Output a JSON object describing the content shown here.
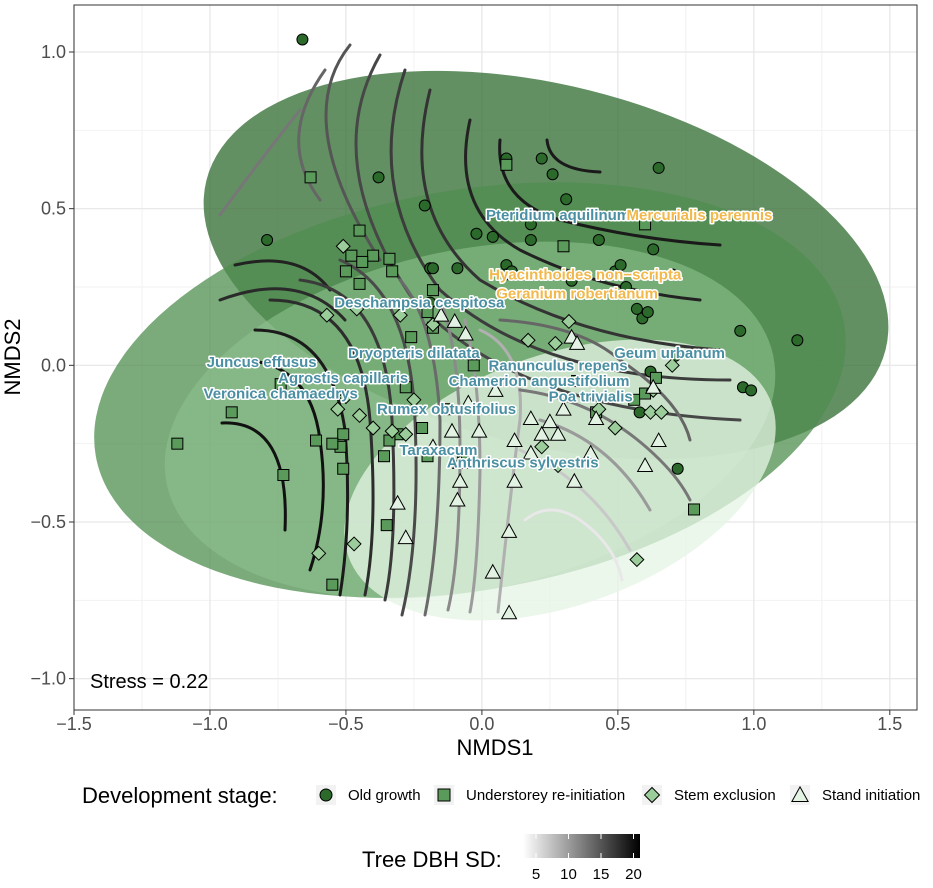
{
  "chart_data": {
    "type": "scatter",
    "xlabel": "NMDS1",
    "ylabel": "NMDS2",
    "xlim": [
      -1.5,
      1.6
    ],
    "ylim": [
      -1.1,
      1.15
    ],
    "x_ticks": [
      -1.5,
      -1.0,
      -0.5,
      0.0,
      0.5,
      1.0,
      1.5
    ],
    "x_tick_labels": [
      "−1.5",
      "−1.0",
      "−0.5",
      "0.0",
      "0.5",
      "1.0",
      "1.5"
    ],
    "y_ticks": [
      -1.0,
      -0.5,
      0.0,
      0.5,
      1.0
    ],
    "y_tick_labels": [
      "−1.0",
      "−0.5",
      "0.0",
      "0.5",
      "1.0"
    ],
    "grid": true,
    "stress_label": "Stress = 0.22",
    "legend_title": "Development stage:",
    "series": [
      {
        "name": "Old growth",
        "marker": "circle",
        "fill": "#2b6a2b",
        "points": [
          [
            -0.66,
            1.04
          ],
          [
            -0.79,
            0.4
          ],
          [
            -0.38,
            0.6
          ],
          [
            -0.21,
            0.51
          ],
          [
            -0.19,
            0.31
          ],
          [
            -0.19,
            0.2
          ],
          [
            -0.18,
            0.31
          ],
          [
            -0.09,
            0.31
          ],
          [
            -0.02,
            0.42
          ],
          [
            0.04,
            0.41
          ],
          [
            0.09,
            0.66
          ],
          [
            0.09,
            0.32
          ],
          [
            0.09,
            0.29
          ],
          [
            0.11,
            0.3
          ],
          [
            0.18,
            0.45
          ],
          [
            0.18,
            0.4
          ],
          [
            0.22,
            0.66
          ],
          [
            0.26,
            0.61
          ],
          [
            0.31,
            0.53
          ],
          [
            0.33,
            0.27
          ],
          [
            0.43,
            0.4
          ],
          [
            0.49,
            0.3
          ],
          [
            0.51,
            0.32
          ],
          [
            0.53,
            0.25
          ],
          [
            0.57,
            0.18
          ],
          [
            0.59,
            0.15
          ],
          [
            0.61,
            0.17
          ],
          [
            0.63,
            0.37
          ],
          [
            0.65,
            0.63
          ],
          [
            0.7,
            0.29
          ],
          [
            0.71,
            0.03
          ],
          [
            0.72,
            -0.33
          ],
          [
            0.95,
            0.11
          ],
          [
            0.96,
            -0.07
          ],
          [
            0.99,
            -0.08
          ],
          [
            1.16,
            0.08
          ],
          [
            0.62,
            -0.02
          ],
          [
            0.58,
            -0.15
          ]
        ]
      },
      {
        "name": "Understorey re-initiation",
        "marker": "square",
        "fill": "#5a9a5a",
        "points": [
          [
            -0.63,
            0.6
          ],
          [
            -0.45,
            0.43
          ],
          [
            -0.48,
            0.35
          ],
          [
            -0.4,
            0.35
          ],
          [
            -0.44,
            0.33
          ],
          [
            -0.34,
            0.34
          ],
          [
            -0.45,
            0.26
          ],
          [
            -0.5,
            0.3
          ],
          [
            -0.33,
            0.3
          ],
          [
            -0.2,
            0.17
          ],
          [
            -0.18,
            0.24
          ],
          [
            -0.18,
            0.12
          ],
          [
            -0.26,
            0.09
          ],
          [
            -0.28,
            -0.07
          ],
          [
            -0.31,
            -0.22
          ],
          [
            -0.36,
            -0.29
          ],
          [
            -0.34,
            -0.24
          ],
          [
            -0.51,
            -0.22
          ],
          [
            -0.51,
            -0.33
          ],
          [
            -0.52,
            -0.26
          ],
          [
            -0.55,
            -0.25
          ],
          [
            -0.61,
            -0.24
          ],
          [
            -0.74,
            -0.06
          ],
          [
            -0.73,
            -0.35
          ],
          [
            -0.92,
            -0.15
          ],
          [
            -1.12,
            -0.25
          ],
          [
            -0.35,
            -0.51
          ],
          [
            -0.55,
            -0.7
          ],
          [
            -0.13,
            -0.14
          ],
          [
            -0.22,
            -0.2
          ],
          [
            -0.2,
            -0.29
          ],
          [
            -0.07,
            -0.29
          ],
          [
            -0.03,
            0.0
          ],
          [
            0.09,
            0.64
          ],
          [
            0.3,
            0.38
          ],
          [
            0.35,
            -0.05
          ],
          [
            0.42,
            -0.15
          ],
          [
            0.56,
            -0.11
          ],
          [
            0.6,
            -0.09
          ],
          [
            0.64,
            -0.04
          ],
          [
            0.6,
            0.45
          ],
          [
            0.78,
            -0.46
          ]
        ]
      },
      {
        "name": "Stem exclusion",
        "marker": "diamond",
        "fill": "#9bcd9b",
        "points": [
          [
            -0.51,
            0.38
          ],
          [
            -0.57,
            0.16
          ],
          [
            -0.46,
            0.18
          ],
          [
            -0.3,
            0.16
          ],
          [
            -0.18,
            0.13
          ],
          [
            -0.25,
            -0.11
          ],
          [
            -0.28,
            -0.22
          ],
          [
            -0.33,
            -0.21
          ],
          [
            -0.45,
            -0.16
          ],
          [
            -0.5,
            -0.1
          ],
          [
            -0.53,
            -0.14
          ],
          [
            -0.6,
            -0.6
          ],
          [
            -0.47,
            -0.57
          ],
          [
            -0.4,
            -0.2
          ],
          [
            0.17,
            0.08
          ],
          [
            0.27,
            0.07
          ],
          [
            0.32,
            0.14
          ],
          [
            0.43,
            -0.14
          ],
          [
            0.49,
            -0.2
          ],
          [
            0.62,
            -0.15
          ],
          [
            0.66,
            -0.15
          ],
          [
            0.63,
            -0.08
          ],
          [
            0.7,
            0.0
          ],
          [
            0.57,
            -0.62
          ],
          [
            0.22,
            -0.26
          ],
          [
            0.28,
            -0.32
          ]
        ]
      },
      {
        "name": "Stand initiation",
        "marker": "triangle",
        "fill": "#e3f3e3",
        "points": [
          [
            -0.15,
            0.16
          ],
          [
            -0.1,
            0.14
          ],
          [
            -0.06,
            0.1
          ],
          [
            -0.18,
            -0.26
          ],
          [
            -0.11,
            -0.21
          ],
          [
            -0.01,
            -0.21
          ],
          [
            -0.08,
            -0.31
          ],
          [
            -0.08,
            -0.37
          ],
          [
            -0.09,
            -0.43
          ],
          [
            -0.31,
            -0.44
          ],
          [
            -0.28,
            -0.55
          ],
          [
            -0.05,
            -0.12
          ],
          [
            0.05,
            -0.08
          ],
          [
            0.12,
            -0.24
          ],
          [
            0.18,
            -0.17
          ],
          [
            0.22,
            -0.22
          ],
          [
            0.25,
            -0.18
          ],
          [
            0.28,
            -0.22
          ],
          [
            0.3,
            -0.14
          ],
          [
            0.33,
            0.09
          ],
          [
            0.35,
            0.07
          ],
          [
            0.42,
            -0.17
          ],
          [
            0.4,
            -0.28
          ],
          [
            0.34,
            -0.37
          ],
          [
            0.12,
            -0.37
          ],
          [
            0.1,
            -0.53
          ],
          [
            0.04,
            -0.66
          ],
          [
            0.1,
            -0.79
          ],
          [
            0.6,
            -0.32
          ],
          [
            0.63,
            -0.07
          ],
          [
            0.65,
            -0.24
          ],
          [
            0.18,
            -0.28
          ]
        ]
      }
    ],
    "species_labels": [
      {
        "text": "Pteridium aquilinum",
        "x": 0.28,
        "y": 0.48,
        "color": "#4a8fa3"
      },
      {
        "text": "Mercurialis perennis",
        "x": 0.8,
        "y": 0.48,
        "color": "#f2b84b"
      },
      {
        "text": "Hyacinthoides non−scripta",
        "x": 0.38,
        "y": 0.29,
        "color": "#f2b84b"
      },
      {
        "text": "Geranium robertianum",
        "x": 0.35,
        "y": 0.23,
        "color": "#f2b84b"
      },
      {
        "text": "Deschampsia cespitosa",
        "x": -0.23,
        "y": 0.2,
        "color": "#4a8fa3"
      },
      {
        "text": "Dryopteris dilatata",
        "x": -0.25,
        "y": 0.04,
        "color": "#4a8fa3"
      },
      {
        "text": "Geum urbanum",
        "x": 0.69,
        "y": 0.04,
        "color": "#4a8fa3"
      },
      {
        "text": "Juncus effusus",
        "x": -0.81,
        "y": 0.01,
        "color": "#4a8fa3"
      },
      {
        "text": "Ranunculus repens",
        "x": 0.28,
        "y": -0.0,
        "color": "#4a8fa3"
      },
      {
        "text": "Agrostis capillaris",
        "x": -0.51,
        "y": -0.04,
        "color": "#4a8fa3"
      },
      {
        "text": "Chamerion angustifolium",
        "x": 0.21,
        "y": -0.05,
        "color": "#4a8fa3"
      },
      {
        "text": "Veronica chamaedrys",
        "x": -0.74,
        "y": -0.09,
        "color": "#4a8fa3"
      },
      {
        "text": "Poa trivialis",
        "x": 0.4,
        "y": -0.1,
        "color": "#4a8fa3"
      },
      {
        "text": "Rumex obtusifolius",
        "x": -0.13,
        "y": -0.14,
        "color": "#4a8fa3"
      },
      {
        "text": "Taraxacum",
        "x": -0.16,
        "y": -0.27,
        "color": "#4a8fa3"
      },
      {
        "text": "Anthriscus sylvestris",
        "x": 0.15,
        "y": -0.31,
        "color": "#4a8fa3"
      }
    ],
    "dbh_legend": {
      "title": "Tree DBH SD:",
      "range": [
        3,
        21
      ],
      "ticks": [
        5,
        10,
        15,
        20
      ],
      "tick_labels": [
        "5",
        "10",
        "15",
        "20"
      ]
    }
  },
  "colors": {
    "old_growth_ellipse": "#2f6b2f",
    "understorey_ellipse": "#4f8e4f",
    "stem_exclusion_ellipse": "#8dc08d",
    "stand_initiation_ellipse": "#e6f4e6"
  }
}
